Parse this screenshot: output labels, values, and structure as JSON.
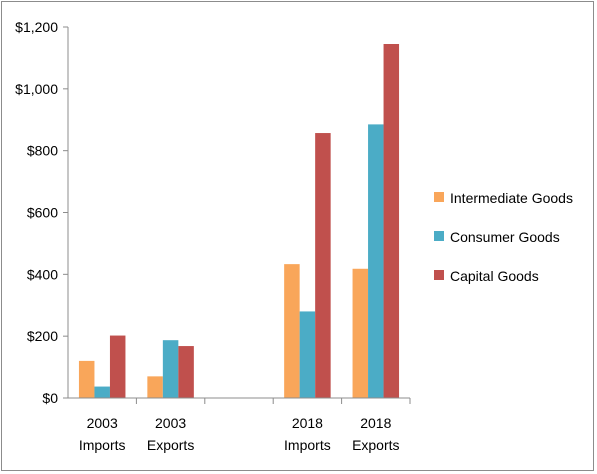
{
  "chart_data": {
    "type": "bar",
    "categories": [
      [
        "2003",
        "Imports"
      ],
      [
        "2003",
        "Exports"
      ],
      [
        "",
        ""
      ],
      [
        "2018",
        "Imports"
      ],
      [
        "2018",
        "Exports"
      ]
    ],
    "series": [
      {
        "name": "Intermediate Goods",
        "color": "#F9A65A",
        "values": [
          120,
          70,
          null,
          433,
          418
        ]
      },
      {
        "name": "Consumer Goods",
        "color": "#4BACC6",
        "values": [
          37,
          187,
          null,
          280,
          885
        ]
      },
      {
        "name": "Capital Goods",
        "color": "#C0504D",
        "values": [
          202,
          168,
          null,
          857,
          1145
        ]
      }
    ],
    "y_ticks": [
      "$0",
      "$200",
      "$400",
      "$600",
      "$800",
      "$1,000",
      "$1,200"
    ],
    "ylim": [
      0,
      1200
    ],
    "y_tick_values": [
      0,
      200,
      400,
      600,
      800,
      1000,
      1200
    ],
    "grid": false,
    "legend_position": "right",
    "title": "",
    "xlabel": "",
    "ylabel": ""
  }
}
